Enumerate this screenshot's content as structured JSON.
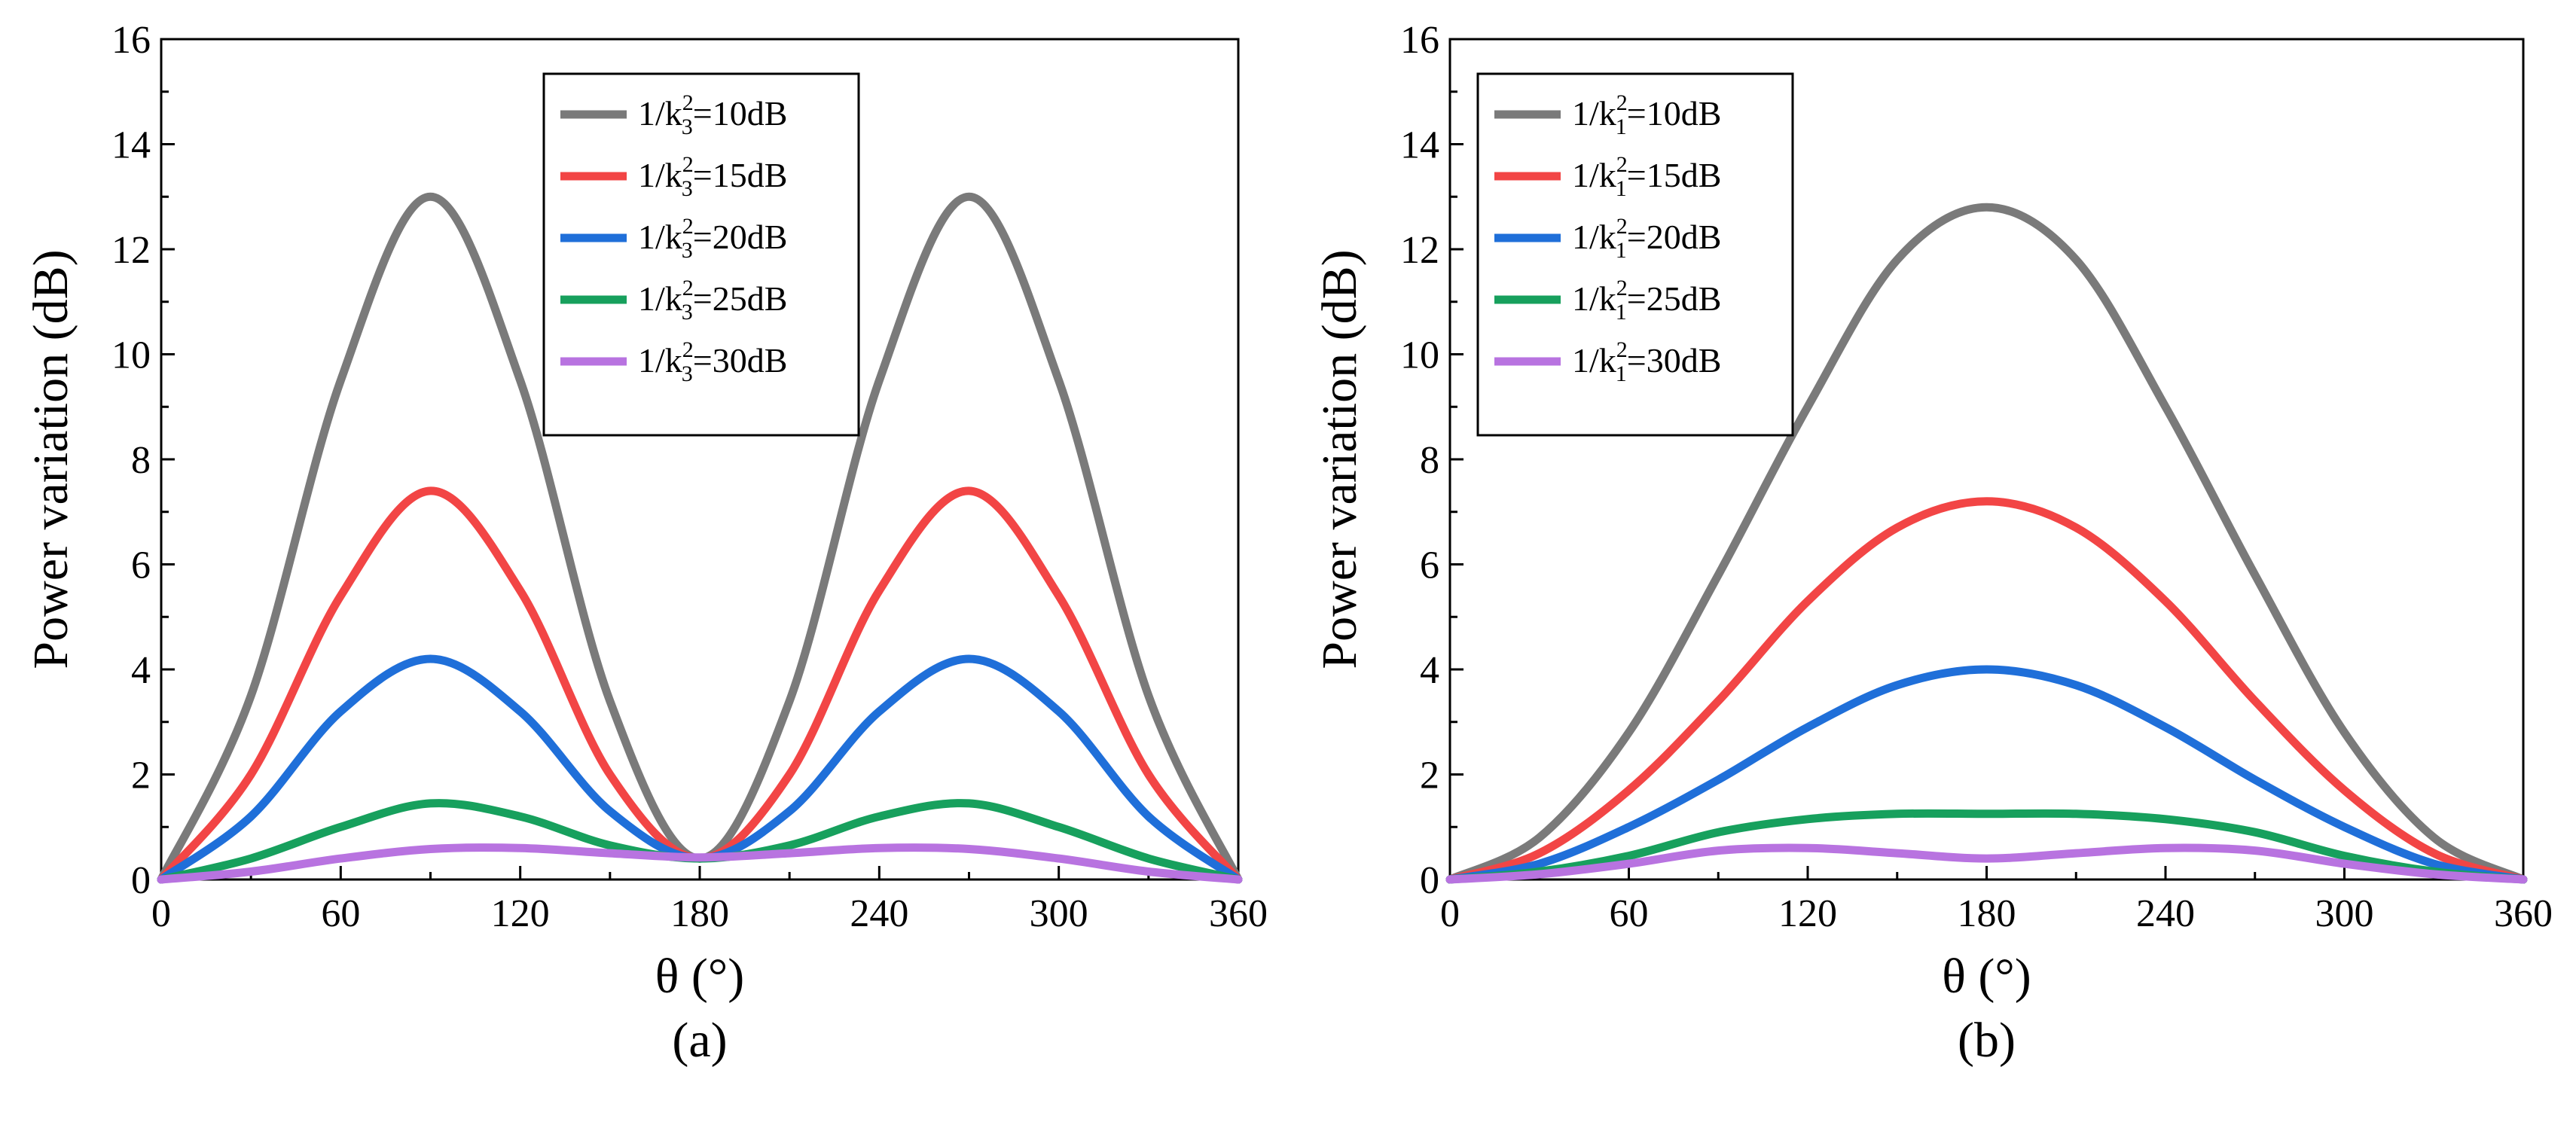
{
  "chart_data": [
    {
      "type": "line",
      "panel_label": "(a)",
      "xlabel": "θ (°)",
      "ylabel": "Power variation (dB)",
      "xlim": [
        0,
        360
      ],
      "ylim": [
        0,
        16
      ],
      "xticks": [
        0,
        60,
        120,
        180,
        240,
        300,
        360
      ],
      "yticks": [
        0,
        2,
        4,
        6,
        8,
        10,
        12,
        14,
        16
      ],
      "legend_position": "top-center",
      "legend_var": "k",
      "legend_sub": "3",
      "legend_sup": "2",
      "x": [
        0,
        30,
        60,
        90,
        120,
        150,
        180,
        210,
        240,
        270,
        300,
        330,
        360
      ],
      "series": [
        {
          "name": "1/k3²=10dB",
          "prefix": "1/",
          "suffix": "=10dB",
          "color": "#7a7a7a",
          "values": [
            0,
            3.5,
            9.5,
            13.0,
            9.5,
            3.4,
            0.4,
            3.4,
            9.5,
            13.0,
            9.5,
            3.5,
            0
          ]
        },
        {
          "name": "1/k3²=15dB",
          "prefix": "1/",
          "suffix": "=15dB",
          "color": "#f24545",
          "values": [
            0,
            2.0,
            5.4,
            7.4,
            5.5,
            2.0,
            0.4,
            2.0,
            5.5,
            7.4,
            5.4,
            2.0,
            0
          ]
        },
        {
          "name": "1/k3²=20dB",
          "prefix": "1/",
          "suffix": "=20dB",
          "color": "#1f6fd9",
          "values": [
            0,
            1.2,
            3.2,
            4.2,
            3.2,
            1.3,
            0.4,
            1.3,
            3.2,
            4.2,
            3.2,
            1.2,
            0
          ]
        },
        {
          "name": "1/k3²=25dB",
          "prefix": "1/",
          "suffix": "=25dB",
          "color": "#17a05d",
          "values": [
            0,
            0.4,
            1.0,
            1.45,
            1.2,
            0.65,
            0.4,
            0.65,
            1.2,
            1.45,
            1.0,
            0.4,
            0
          ]
        },
        {
          "name": "1/k3²=30dB",
          "prefix": "1/",
          "suffix": "=30dB",
          "color": "#b873e0",
          "values": [
            0,
            0.15,
            0.4,
            0.58,
            0.6,
            0.5,
            0.42,
            0.5,
            0.6,
            0.58,
            0.4,
            0.15,
            0
          ]
        }
      ]
    },
    {
      "type": "line",
      "panel_label": "(b)",
      "xlabel": "θ (°)",
      "ylabel": "Power variation (dB)",
      "xlim": [
        0,
        360
      ],
      "ylim": [
        0,
        16
      ],
      "xticks": [
        0,
        60,
        120,
        180,
        240,
        300,
        360
      ],
      "yticks": [
        0,
        2,
        4,
        6,
        8,
        10,
        12,
        14,
        16
      ],
      "legend_position": "top-left",
      "legend_var": "k",
      "legend_sub": "1",
      "legend_sup": "2",
      "x": [
        0,
        30,
        60,
        90,
        120,
        150,
        180,
        210,
        240,
        270,
        300,
        330,
        360
      ],
      "series": [
        {
          "name": "1/k1²=10dB",
          "prefix": "1/",
          "suffix": "=10dB",
          "color": "#7a7a7a",
          "values": [
            0,
            0.8,
            2.8,
            5.8,
            9.0,
            11.8,
            12.8,
            11.8,
            9.0,
            5.8,
            2.8,
            0.8,
            0
          ]
        },
        {
          "name": "1/k1²=15dB",
          "prefix": "1/",
          "suffix": "=15dB",
          "color": "#f24545",
          "values": [
            0,
            0.5,
            1.7,
            3.4,
            5.3,
            6.7,
            7.2,
            6.7,
            5.3,
            3.4,
            1.7,
            0.5,
            0
          ]
        },
        {
          "name": "1/k1²=20dB",
          "prefix": "1/",
          "suffix": "=20dB",
          "color": "#1f6fd9",
          "values": [
            0,
            0.3,
            1.0,
            1.9,
            2.9,
            3.7,
            4.0,
            3.7,
            2.9,
            1.9,
            1.0,
            0.3,
            0
          ]
        },
        {
          "name": "1/k1²=25dB",
          "prefix": "1/",
          "suffix": "=25dB",
          "color": "#17a05d",
          "values": [
            0,
            0.15,
            0.45,
            0.9,
            1.15,
            1.25,
            1.25,
            1.25,
            1.15,
            0.9,
            0.45,
            0.15,
            0
          ]
        },
        {
          "name": "1/k1²=30dB",
          "prefix": "1/",
          "suffix": "=30dB",
          "color": "#b873e0",
          "values": [
            0,
            0.1,
            0.3,
            0.55,
            0.6,
            0.5,
            0.4,
            0.5,
            0.6,
            0.55,
            0.3,
            0.1,
            0
          ]
        }
      ]
    }
  ]
}
